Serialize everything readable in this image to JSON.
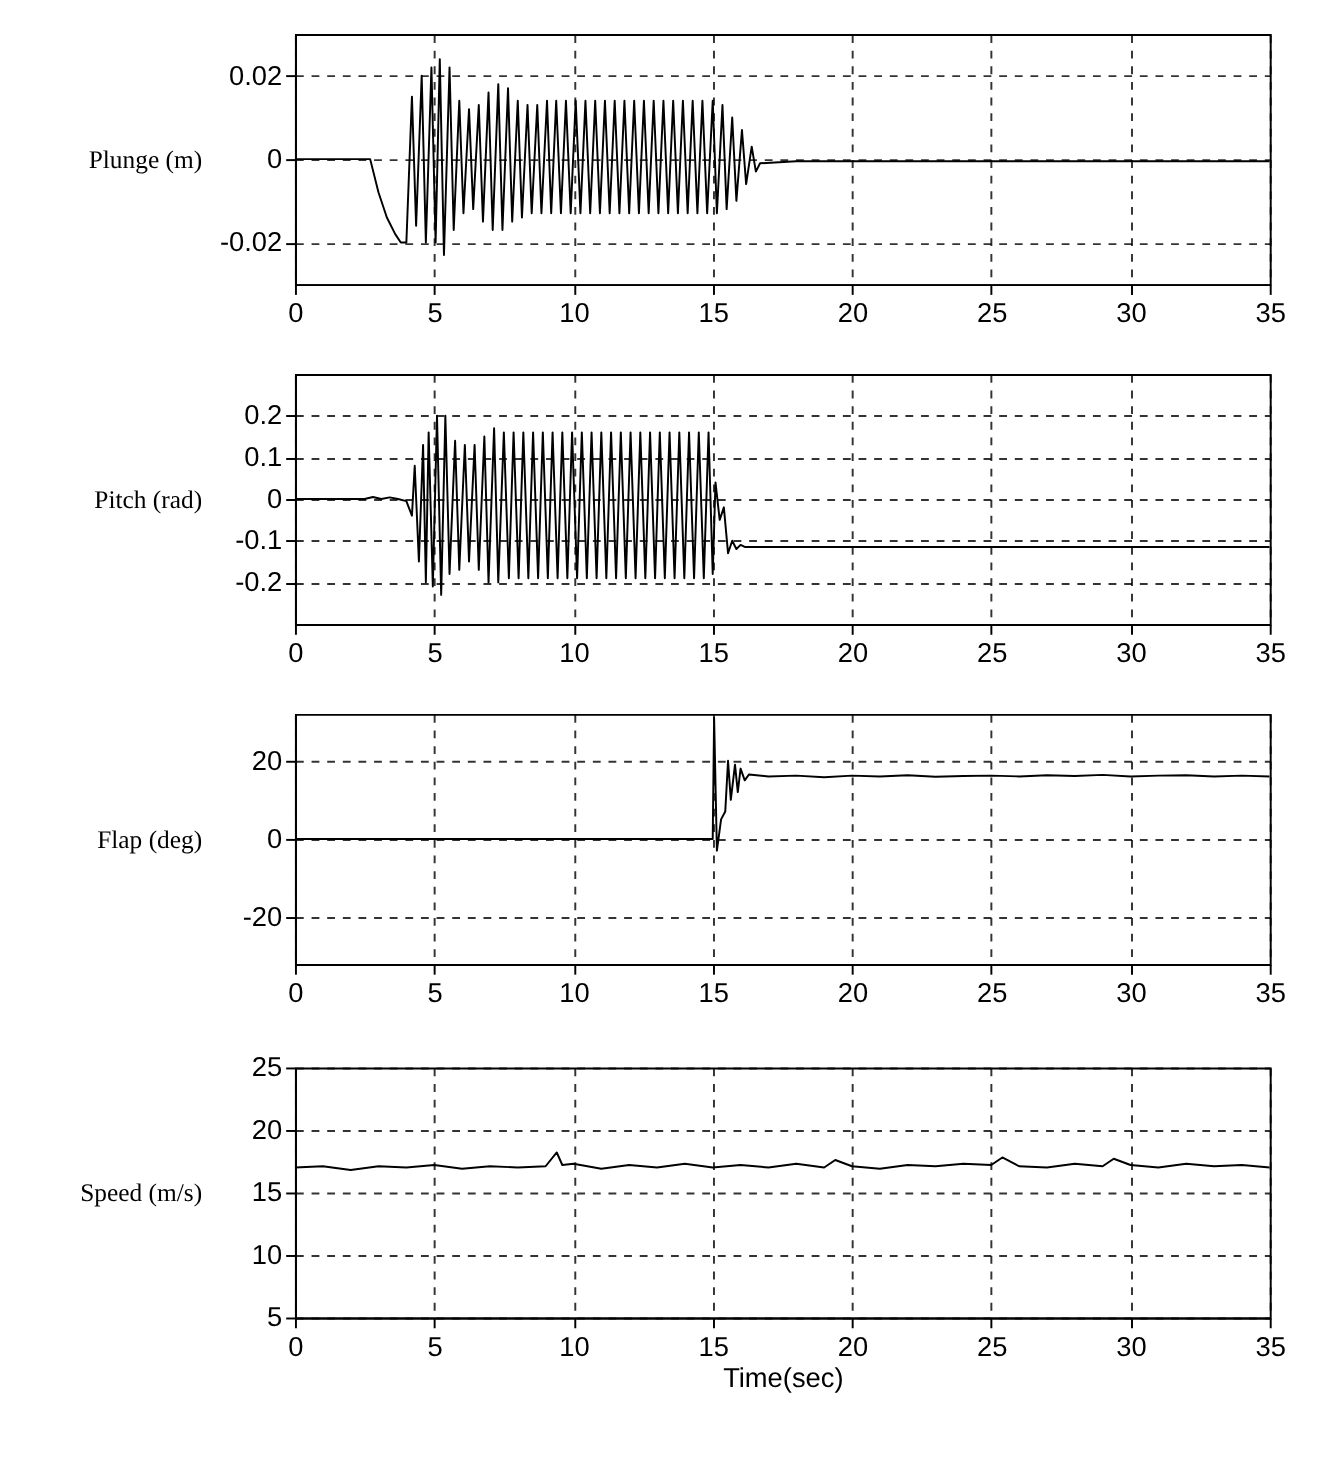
{
  "chart_data": [
    {
      "type": "line",
      "ylabel": "Plunge (m)",
      "xlim": [
        0,
        35
      ],
      "xticks": [
        0,
        5,
        10,
        15,
        20,
        25,
        30,
        35
      ],
      "ylim": [
        -0.03,
        0.03
      ],
      "yticks": [
        -0.02,
        0,
        0.02
      ],
      "grid": true,
      "line_style": "solid",
      "marker": "none",
      "series": [
        {
          "color": "#000000",
          "x": [
            0,
            2.7,
            3.0,
            3.3,
            3.6,
            3.8,
            4.0,
            4.2,
            4.35,
            4.55,
            4.7,
            4.9,
            5.05,
            5.2,
            5.35,
            5.55,
            5.7,
            5.9,
            6.05,
            6.25,
            6.4,
            6.6,
            6.75,
            6.95,
            7.1,
            7.3,
            7.45,
            7.65,
            7.8,
            8.0,
            8.15,
            8.35,
            8.5,
            8.7,
            8.85,
            9.05,
            9.2,
            9.38,
            9.55,
            9.73,
            9.9,
            10.08,
            10.25,
            10.43,
            10.6,
            10.78,
            10.95,
            11.13,
            11.3,
            11.48,
            11.65,
            11.83,
            12.0,
            12.18,
            12.35,
            12.53,
            12.7,
            12.88,
            13.05,
            13.23,
            13.4,
            13.58,
            13.75,
            13.93,
            14.1,
            14.28,
            14.45,
            14.63,
            14.8,
            15.0,
            15.15,
            15.35,
            15.5,
            15.7,
            15.85,
            16.05,
            16.2,
            16.4,
            16.55,
            16.7,
            18,
            20,
            35
          ],
          "values": [
            0,
            0,
            -0.008,
            -0.014,
            -0.018,
            -0.02,
            -0.02,
            0.015,
            -0.016,
            0.02,
            -0.02,
            0.022,
            -0.02,
            0.024,
            -0.023,
            0.022,
            -0.017,
            0.014,
            -0.013,
            0.012,
            -0.012,
            0.013,
            -0.015,
            0.016,
            -0.017,
            0.018,
            -0.017,
            0.017,
            -0.015,
            0.014,
            -0.014,
            0.013,
            -0.013,
            0.013,
            -0.013,
            0.014,
            -0.013,
            0.014,
            -0.013,
            0.014,
            -0.013,
            0.014,
            -0.013,
            0.014,
            -0.013,
            0.014,
            -0.013,
            0.014,
            -0.013,
            0.014,
            -0.013,
            0.014,
            -0.013,
            0.014,
            -0.013,
            0.014,
            -0.013,
            0.014,
            -0.013,
            0.014,
            -0.013,
            0.014,
            -0.013,
            0.014,
            -0.013,
            0.014,
            -0.013,
            0.014,
            -0.013,
            0.014,
            -0.013,
            0.013,
            -0.012,
            0.01,
            -0.01,
            0.007,
            -0.006,
            0.003,
            -0.003,
            -0.001,
            -0.0005,
            -0.0005,
            -0.0005
          ]
        }
      ]
    },
    {
      "type": "line",
      "ylabel": "Pitch (rad)",
      "xlim": [
        0,
        35
      ],
      "xticks": [
        0,
        5,
        10,
        15,
        20,
        25,
        30,
        35
      ],
      "ylim": [
        -0.3,
        0.3
      ],
      "yticks": [
        -0.2,
        -0.1,
        0,
        0.1,
        0.2
      ],
      "grid": true,
      "line_style": "solid",
      "marker": "none",
      "series": [
        {
          "color": "#000000",
          "x": [
            0,
            2.5,
            2.8,
            3.1,
            3.4,
            3.7,
            4.0,
            4.2,
            4.3,
            4.45,
            4.6,
            4.7,
            4.8,
            4.95,
            5.1,
            5.25,
            5.4,
            5.55,
            5.75,
            5.9,
            6.1,
            6.25,
            6.45,
            6.6,
            6.8,
            6.95,
            7.15,
            7.3,
            7.5,
            7.68,
            7.85,
            8.03,
            8.2,
            8.38,
            8.55,
            8.73,
            8.9,
            9.08,
            9.25,
            9.43,
            9.6,
            9.78,
            9.95,
            10.13,
            10.3,
            10.48,
            10.65,
            10.83,
            11.0,
            11.18,
            11.35,
            11.53,
            11.7,
            11.88,
            12.05,
            12.23,
            12.4,
            12.58,
            12.75,
            12.93,
            13.1,
            13.28,
            13.45,
            13.63,
            13.8,
            13.98,
            14.15,
            14.33,
            14.5,
            14.68,
            14.85,
            15.0,
            15.1,
            15.25,
            15.4,
            15.55,
            15.7,
            15.85,
            16.0,
            16.15,
            16.5,
            20,
            35
          ],
          "values": [
            0,
            0,
            0.005,
            0,
            0.004,
            0,
            -0.005,
            -0.04,
            0.08,
            -0.15,
            0.13,
            -0.2,
            0.16,
            -0.21,
            0.2,
            -0.23,
            0.2,
            -0.18,
            0.14,
            -0.17,
            0.13,
            -0.15,
            0.13,
            -0.17,
            0.15,
            -0.2,
            0.17,
            -0.2,
            0.16,
            -0.19,
            0.16,
            -0.19,
            0.16,
            -0.19,
            0.16,
            -0.19,
            0.16,
            -0.19,
            0.16,
            -0.19,
            0.16,
            -0.19,
            0.16,
            -0.19,
            0.16,
            -0.19,
            0.16,
            -0.19,
            0.16,
            -0.19,
            0.16,
            -0.19,
            0.16,
            -0.19,
            0.16,
            -0.19,
            0.16,
            -0.19,
            0.16,
            -0.19,
            0.16,
            -0.19,
            0.16,
            -0.19,
            0.16,
            -0.19,
            0.16,
            -0.19,
            0.16,
            -0.19,
            0.16,
            -0.18,
            0.04,
            -0.05,
            -0.02,
            -0.13,
            -0.1,
            -0.12,
            -0.11,
            -0.115,
            -0.115,
            -0.115,
            -0.115
          ]
        }
      ]
    },
    {
      "type": "line",
      "ylabel": "Flap (deg)",
      "xlim": [
        0,
        35
      ],
      "xticks": [
        0,
        5,
        10,
        15,
        20,
        25,
        30,
        35
      ],
      "ylim": [
        -32,
        32
      ],
      "yticks": [
        -20,
        0,
        20
      ],
      "grid": true,
      "line_style": "solid",
      "marker": "none",
      "series": [
        {
          "color": "#000000",
          "x": [
            0,
            15.0,
            15.05,
            15.15,
            15.3,
            15.45,
            15.55,
            15.65,
            15.8,
            15.9,
            16.0,
            16.15,
            16.3,
            17,
            18,
            19,
            20,
            21,
            22,
            23,
            24,
            25,
            26,
            27,
            28,
            29,
            30,
            31,
            32,
            33,
            34,
            35
          ],
          "values": [
            0,
            0,
            31,
            -3,
            5,
            7,
            20,
            10,
            19,
            12,
            18,
            15,
            16.5,
            16,
            16.2,
            15.8,
            16.2,
            16,
            16.3,
            15.9,
            16.1,
            16.2,
            16,
            16.3,
            16.1,
            16.4,
            16,
            16.2,
            16.3,
            16,
            16.2,
            16
          ]
        }
      ]
    },
    {
      "type": "line",
      "ylabel": "Speed (m/s)",
      "xlabel": "Time(sec)",
      "xlim": [
        0,
        35
      ],
      "xticks": [
        0,
        5,
        10,
        15,
        20,
        25,
        30,
        35
      ],
      "ylim": [
        5,
        25
      ],
      "yticks": [
        5,
        10,
        15,
        20,
        25
      ],
      "grid": true,
      "line_style": "solid",
      "marker": "none",
      "series": [
        {
          "color": "#000000",
          "x": [
            0,
            1,
            2,
            3,
            4,
            5,
            6,
            7,
            8,
            9,
            9.4,
            9.6,
            10,
            11,
            12,
            13,
            14,
            15,
            16,
            17,
            18,
            19,
            19.4,
            20,
            21,
            22,
            23,
            24,
            25,
            25.4,
            26,
            27,
            28,
            29,
            29.4,
            30,
            31,
            32,
            33,
            34,
            35
          ],
          "values": [
            17,
            17.1,
            16.8,
            17.1,
            17,
            17.2,
            16.9,
            17.1,
            17,
            17.1,
            18.2,
            17.2,
            17.3,
            16.9,
            17.2,
            17,
            17.3,
            17,
            17.2,
            17,
            17.3,
            17,
            17.6,
            17.1,
            16.9,
            17.2,
            17.1,
            17.3,
            17.2,
            17.8,
            17.1,
            17,
            17.3,
            17.1,
            17.7,
            17.2,
            17,
            17.3,
            17.1,
            17.2,
            17
          ]
        }
      ]
    }
  ]
}
